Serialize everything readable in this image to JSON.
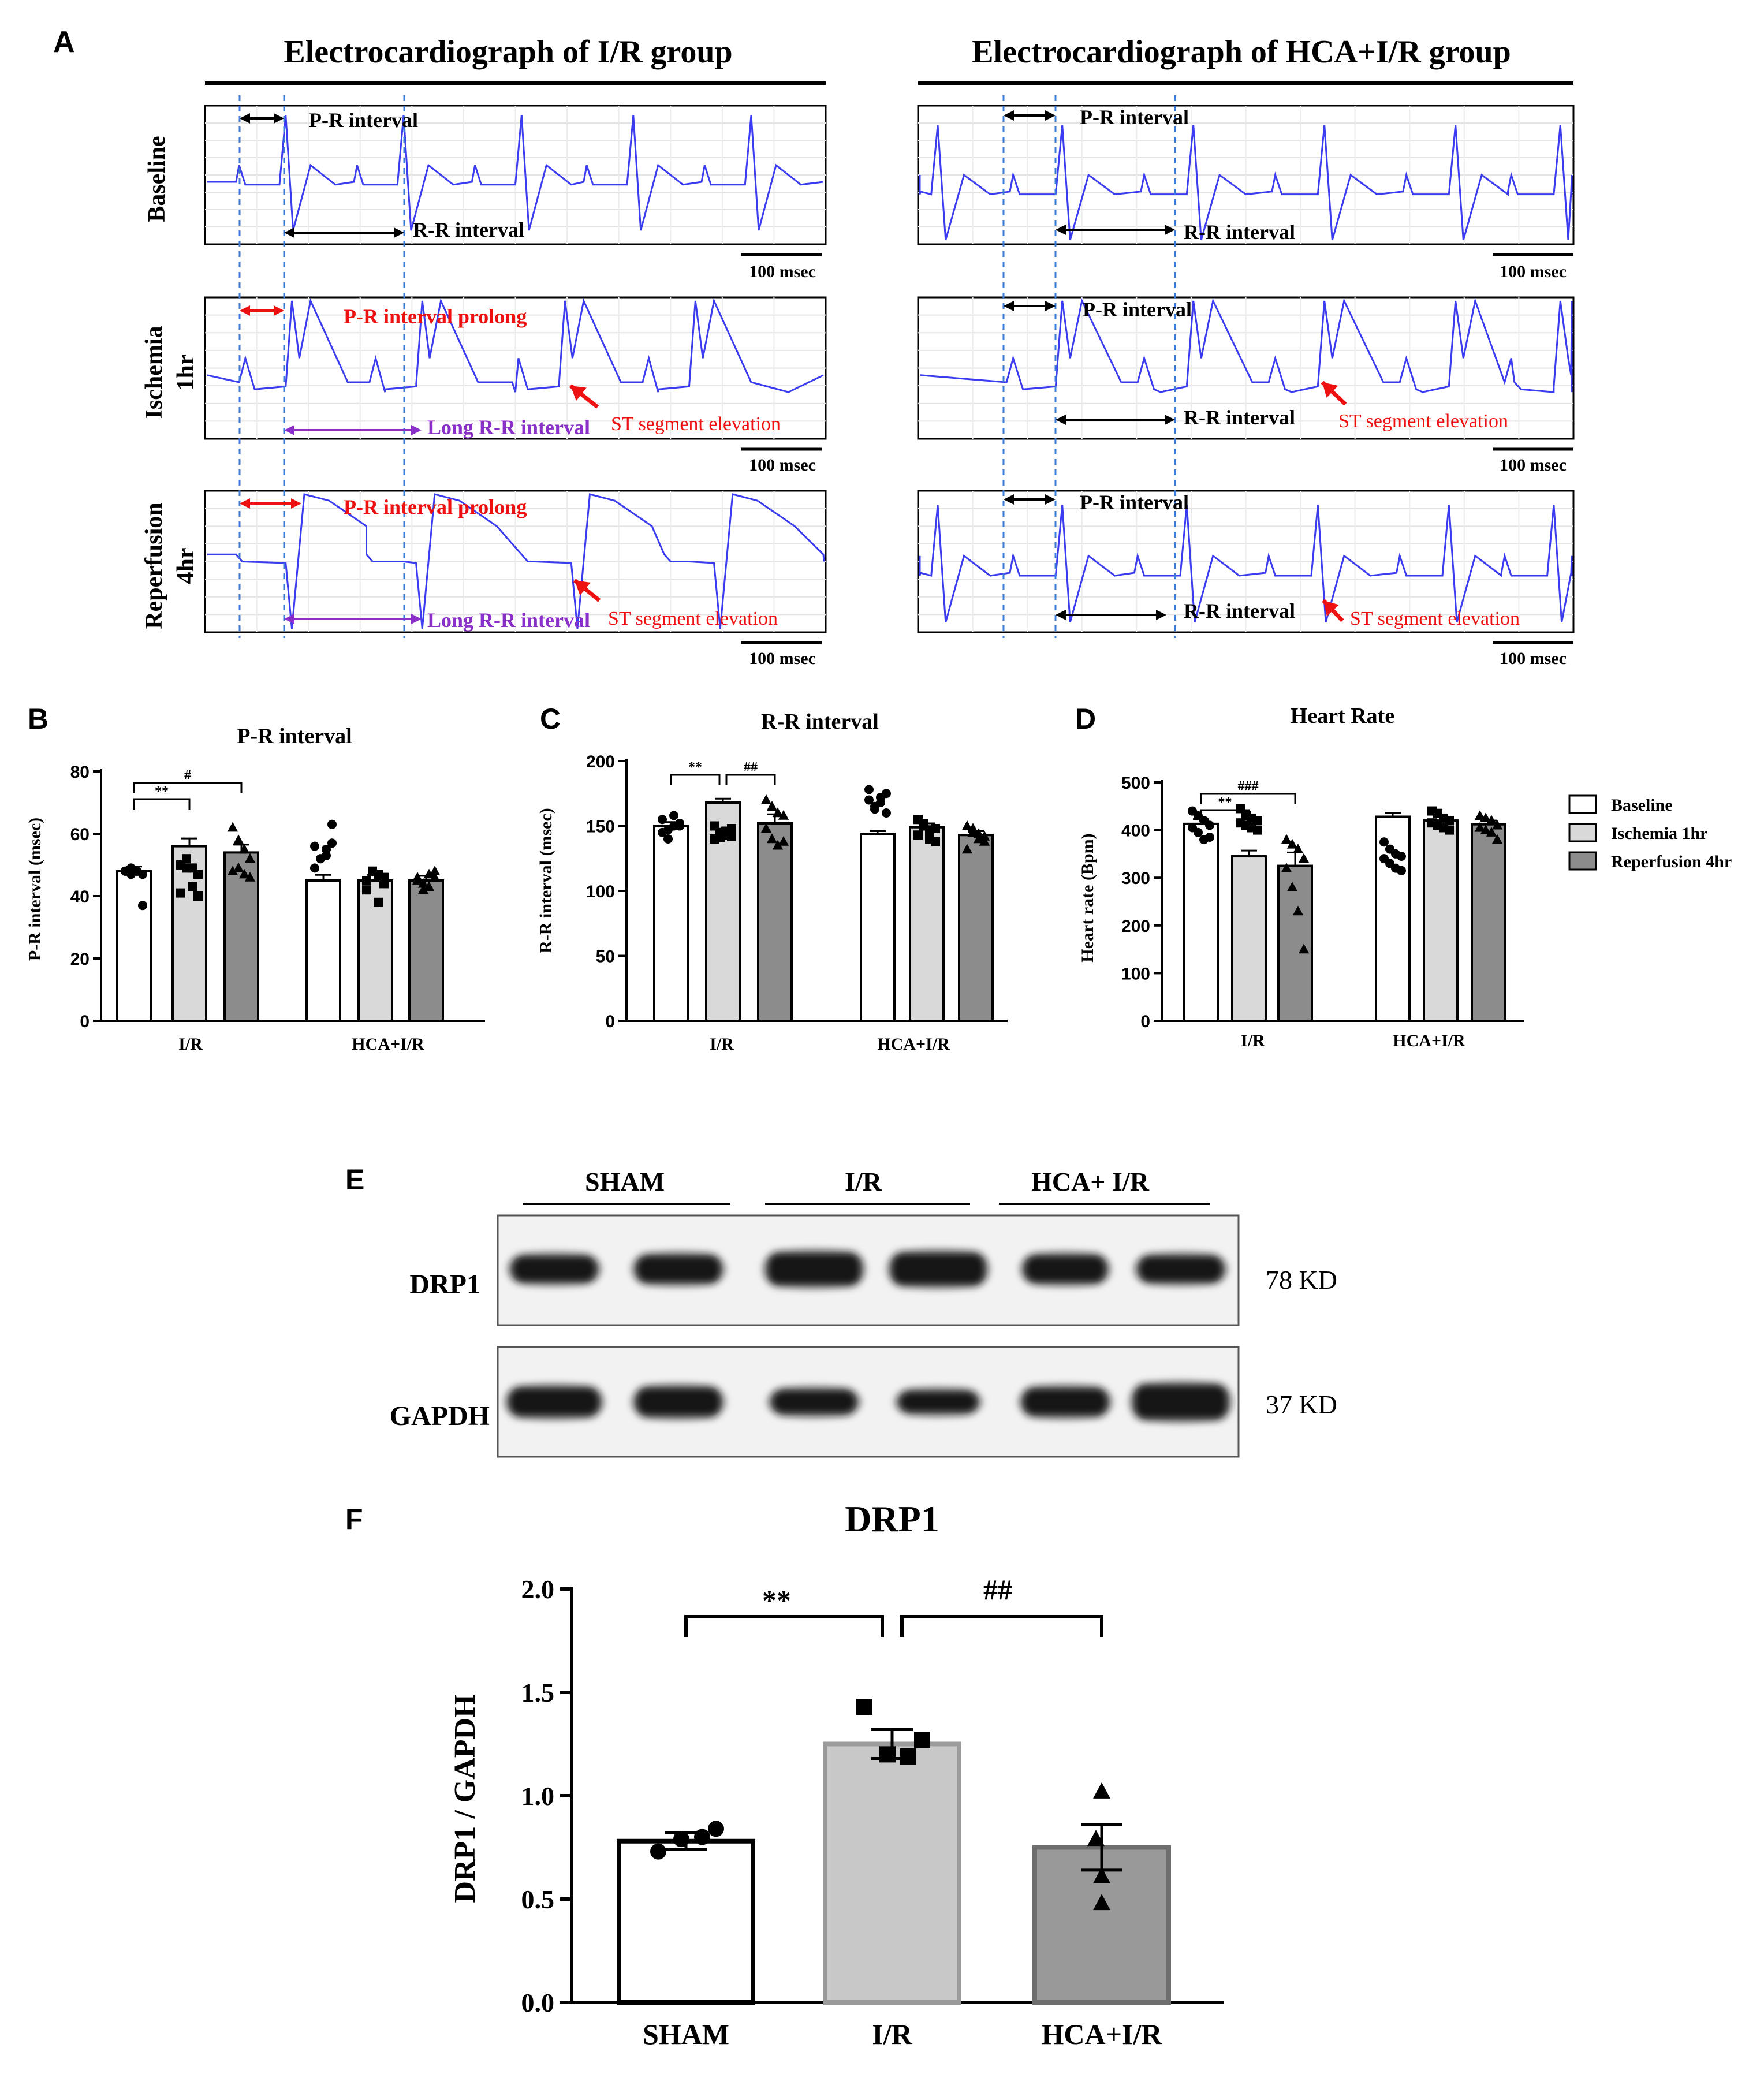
{
  "panel_letters": {
    "a": "A",
    "b": "B",
    "c": "C",
    "d": "D",
    "e": "E",
    "f": "F"
  },
  "ecg": {
    "left_title": "Electrocardiograph of  I/R group",
    "right_title": "Electrocardiograph of HCA+I/R group",
    "rows": [
      {
        "line1": "Baseline",
        "line2": ""
      },
      {
        "line1": "Ischemia",
        "line2": "1hr"
      },
      {
        "line1": "Reperfusion",
        "line2": "4hr"
      }
    ],
    "scale_bar": "100 msec",
    "labels": {
      "pr": "P-R interval",
      "rr": "R-R interval",
      "pr_prolong": "P-R interval prolong",
      "long_rr": "Long R-R interval",
      "st": "ST segment elevation"
    },
    "colors": {
      "trace": "#3b3bf0",
      "red": "#ee1111",
      "purple": "#8a30c8",
      "guide": "#3a7ad8"
    }
  },
  "bar_panels": {
    "b": {
      "title": "P-R interval",
      "ylabel": "P-R interval (msec)",
      "groups": [
        "I/R",
        "HCA+I/R"
      ]
    },
    "c": {
      "title": "R-R interval",
      "ylabel": "R-R interval (msec)",
      "groups": [
        "I/R",
        "HCA+I/R"
      ]
    },
    "d": {
      "title": "Heart Rate",
      "ylabel": "Heart rate (Bpm)",
      "groups": [
        "I/R",
        "HCA+I/R"
      ]
    }
  },
  "legend": [
    {
      "label": "Baseline",
      "color": "#ffffff"
    },
    {
      "label": "Ischemia 1hr",
      "color": "#d9d9d9"
    },
    {
      "label": "Reperfusion 4hr",
      "color": "#8c8c8c"
    }
  ],
  "western": {
    "groups": [
      "SHAM",
      "I/R",
      "HCA+ I/R"
    ],
    "rows": [
      {
        "protein": "DRP1",
        "size": "78 KD"
      },
      {
        "protein": "GAPDH",
        "size": "37 KD"
      }
    ]
  },
  "drp1_chart": {
    "title": "DRP1",
    "ylabel": "DRP1 / GAPDH"
  },
  "chart_data": [
    {
      "type": "bar",
      "title": "P-R interval",
      "ylabel": "P-R interval (msec)",
      "categories": [
        "I/R",
        "HCA+I/R"
      ],
      "ylim": [
        0,
        80
      ],
      "yticks": [
        0,
        20,
        40,
        60,
        80
      ],
      "series": [
        {
          "name": "Baseline",
          "values": [
            48,
            45
          ],
          "sem": [
            1.5,
            1.8
          ]
        },
        {
          "name": "Ischemia 1hr",
          "values": [
            56,
            45
          ],
          "sem": [
            2.5,
            1.8
          ]
        },
        {
          "name": "Reperfusion 4hr",
          "values": [
            54,
            45
          ],
          "sem": [
            2.5,
            1.5
          ]
        }
      ],
      "points": [
        [
          [
            48,
            49,
            48,
            47,
            48,
            47,
            48,
            37
          ],
          [
            49,
            52,
            55,
            57,
            56,
            52,
            53,
            63
          ]
        ],
        [
          [
            50,
            52,
            49,
            47,
            41,
            49,
            43,
            40
          ],
          [
            45,
            48,
            47,
            44,
            42,
            48,
            38,
            46
          ]
        ],
        [
          [
            62,
            58,
            55,
            52,
            48,
            49,
            47,
            46
          ],
          [
            46,
            44,
            43,
            48,
            45,
            42,
            47,
            46
          ]
        ]
      ],
      "significance": [
        {
          "pair": [
            "Baseline",
            "Ischemia 1hr"
          ],
          "group": "I/R",
          "label": "**"
        },
        {
          "pair": [
            "Baseline",
            "Reperfusion 4hr"
          ],
          "group": "I/R",
          "label": "#"
        }
      ]
    },
    {
      "type": "bar",
      "title": "R-R interval",
      "ylabel": "R-R interval (msec)",
      "categories": [
        "I/R",
        "HCA+I/R"
      ],
      "ylim": [
        0,
        200
      ],
      "yticks": [
        0,
        50,
        100,
        150,
        200
      ],
      "series": [
        {
          "name": "Baseline",
          "values": [
            150,
            144
          ],
          "sem": [
            3,
            2
          ]
        },
        {
          "name": "Ischemia 1hr",
          "values": [
            168,
            149
          ],
          "sem": [
            3,
            3
          ]
        },
        {
          "name": "Reperfusion 4hr",
          "values": [
            152,
            143
          ],
          "sem": [
            7,
            3
          ]
        }
      ],
      "points": [
        [
          [
            155,
            147,
            150,
            152,
            145,
            140,
            158,
            150
          ],
          [
            170,
            165,
            172,
            160,
            178,
            163,
            168,
            175
          ]
        ],
        [
          [
            150,
            145,
            143,
            148,
            140,
            141,
            146,
            142
          ],
          [
            155,
            150,
            140,
            148,
            143,
            152,
            147,
            138
          ]
        ],
        [
          [
            170,
            165,
            160,
            158,
            148,
            140,
            135,
            138
          ],
          [
            150,
            145,
            140,
            138,
            132,
            148,
            144,
            142
          ]
        ]
      ],
      "significance": [
        {
          "pair": [
            "Baseline",
            "Ischemia 1hr"
          ],
          "group": "I/R",
          "label": "**"
        },
        {
          "pair": [
            "Ischemia 1hr",
            "Reperfusion 4hr"
          ],
          "group": "I/R",
          "label": "##"
        }
      ]
    },
    {
      "type": "bar",
      "title": "Heart Rate",
      "ylabel": "Heart rate (Bpm)",
      "categories": [
        "I/R",
        "HCA+I/R"
      ],
      "ylim": [
        0,
        500
      ],
      "yticks": [
        0,
        100,
        200,
        300,
        400,
        500
      ],
      "series": [
        {
          "name": "Baseline",
          "values": [
            413,
            428
          ],
          "sem": [
            10,
            8
          ]
        },
        {
          "name": "Ischemia 1hr",
          "values": [
            345,
            420
          ],
          "sem": [
            12,
            8
          ]
        },
        {
          "name": "Reperfusion 4hr",
          "values": [
            325,
            412
          ],
          "sem": [
            28,
            8
          ]
        }
      ],
      "points": [
        [
          [
            440,
            430,
            420,
            410,
            405,
            395,
            380,
            385
          ],
          [
            375,
            360,
            350,
            345,
            340,
            330,
            320,
            315
          ]
        ],
        [
          [
            445,
            430,
            425,
            420,
            415,
            410,
            405,
            400
          ],
          [
            440,
            435,
            425,
            420,
            415,
            410,
            405,
            400
          ]
        ],
        [
          [
            380,
            370,
            360,
            340,
            320,
            280,
            230,
            150
          ],
          [
            430,
            425,
            420,
            410,
            405,
            400,
            395,
            380
          ]
        ]
      ],
      "significance": [
        {
          "pair": [
            "Baseline",
            "Ischemia 1hr"
          ],
          "group": "I/R",
          "label": "**"
        },
        {
          "pair": [
            "Baseline",
            "Reperfusion 4hr"
          ],
          "group": "I/R",
          "label": "###"
        }
      ]
    },
    {
      "type": "bar",
      "title": "DRP1",
      "ylabel": "DRP1 / GAPDH",
      "categories": [
        "SHAM",
        "I/R",
        "HCA+I/R"
      ],
      "ylim": [
        0,
        2.0
      ],
      "yticks": [
        0.0,
        0.5,
        1.0,
        1.5,
        2.0
      ],
      "values": [
        0.78,
        1.25,
        0.75
      ],
      "sem": [
        0.04,
        0.07,
        0.11
      ],
      "points": [
        [
          0.73,
          0.79,
          0.8,
          0.84
        ],
        [
          1.43,
          1.2,
          1.19,
          1.27
        ],
        [
          1.02,
          0.79,
          0.61,
          0.48
        ]
      ],
      "colors": [
        "#ffffff",
        "#c8c8c8",
        "#999999"
      ],
      "significance": [
        {
          "pair": [
            "SHAM",
            "I/R"
          ],
          "label": "**"
        },
        {
          "pair": [
            "I/R",
            "HCA+I/R"
          ],
          "label": "##"
        }
      ]
    }
  ]
}
